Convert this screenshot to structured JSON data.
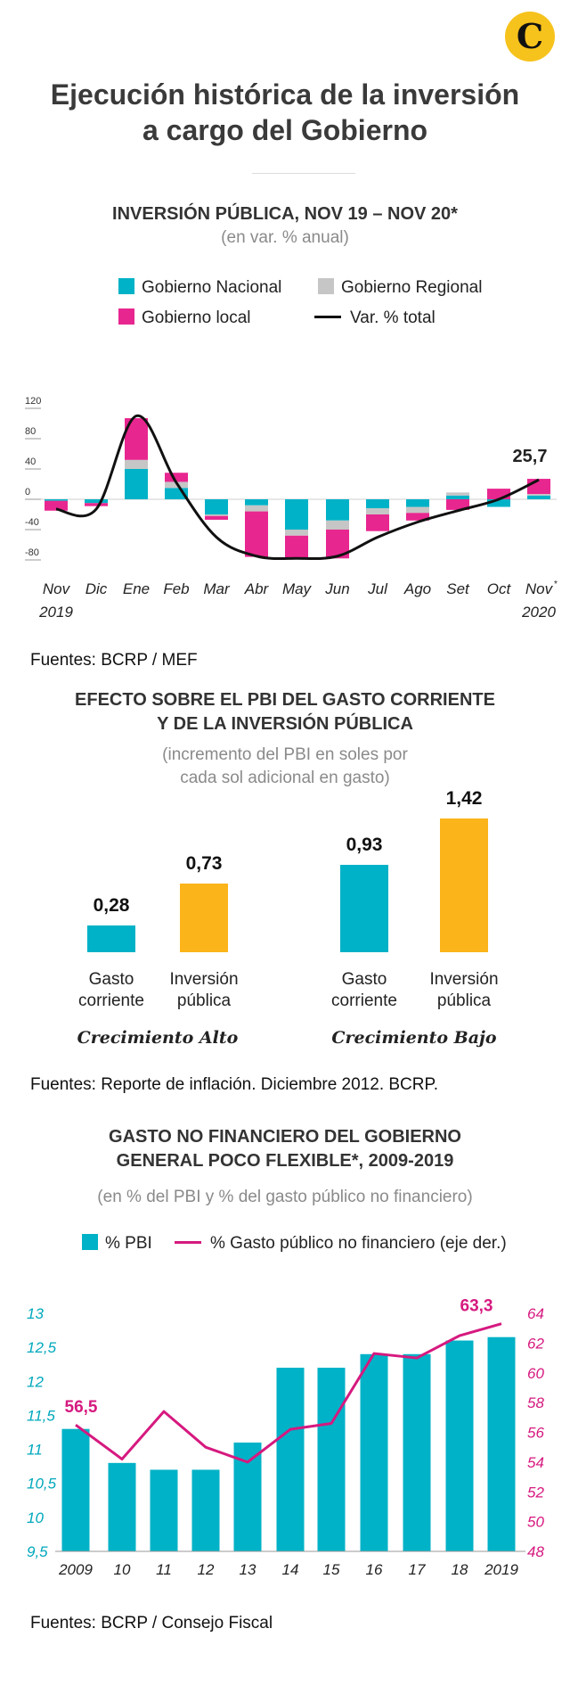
{
  "brand": {
    "logo_letter": "C"
  },
  "title_lines": [
    "Ejecución histórica de la inversión",
    "a cargo del Gobierno"
  ],
  "colors": {
    "nacional": "#00b2c7",
    "regional": "#c6c6c6",
    "local": "#e8268f",
    "total": "#111111",
    "gold": "#fbb41a",
    "pink_line": "#d6197f"
  },
  "section1": {
    "title": "INVERSIÓN PÚBLICA, NOV 19 – NOV 20*",
    "subtitle": "(en var. % anual)",
    "legend": {
      "nacional": "Gobierno Nacional",
      "regional": "Gobierno Regional",
      "local": "Gobierno local",
      "total": "Var. % total"
    },
    "source": "Fuentes: BCRP / MEF",
    "last_label": "25,7"
  },
  "section2": {
    "title_lines": [
      "EFECTO SOBRE EL PBI DEL GASTO CORRIENTE",
      "Y DE LA INVERSIÓN PÚBLICA"
    ],
    "subtitle_lines": [
      "(incremento del PBI en soles por",
      "cada sol adicional en gasto)"
    ],
    "labels": {
      "gasto": [
        "Gasto",
        "corriente"
      ],
      "inversion": [
        "Inversión",
        "pública"
      ]
    },
    "groups": [
      "Crecimiento Alto",
      "Crecimiento Bajo"
    ],
    "value_labels": [
      "0,28",
      "0,73",
      "0,93",
      "1,42"
    ],
    "source": "Fuentes: Reporte de inflación. Diciembre 2012. BCRP."
  },
  "section3": {
    "title_lines": [
      "GASTO NO FINANCIERO DEL GOBIERNO",
      "GENERAL POCO FLEXIBLE*, 2009-2019"
    ],
    "subtitle": "(en % del PBI y % del gasto público no financiero)",
    "legend": {
      "bars": "% PBI",
      "line": "% Gasto público no financiero (eje der.)"
    },
    "first_label": "56,5",
    "last_label": "63,3",
    "source": "Fuentes: BCRP / Consejo Fiscal"
  },
  "chart_data": [
    {
      "type": "bar",
      "stacked": true,
      "title": "INVERSIÓN PÚBLICA, NOV 19 – NOV 20*",
      "subtitle": "(en var. % anual)",
      "categories": [
        "Nov",
        "Dic",
        "Ene",
        "Feb",
        "Mar",
        "Abr",
        "May",
        "Jun",
        "Jul",
        "Ago",
        "Set",
        "Oct",
        "Nov*"
      ],
      "category_sublabels": [
        "2019",
        "",
        "",
        "",
        "",
        "",
        "",
        "",
        "",
        "",
        "",
        "",
        "2020"
      ],
      "series": [
        {
          "name": "Gobierno Nacional",
          "values": [
            -2,
            -5,
            40,
            15,
            -20,
            -8,
            -40,
            -28,
            -12,
            -10,
            5,
            -10,
            5
          ]
        },
        {
          "name": "Gobierno Regional",
          "values": [
            0,
            0,
            12,
            8,
            -2,
            -8,
            -8,
            -12,
            -8,
            -8,
            4,
            0,
            2
          ]
        },
        {
          "name": "Gobierno local",
          "values": [
            -13,
            -4,
            55,
            12,
            -5,
            -60,
            -30,
            -38,
            -22,
            -10,
            -14,
            14,
            20
          ]
        },
        {
          "name": "Var. % total",
          "type": "line",
          "values": [
            -13,
            -13,
            110,
            22,
            -50,
            -75,
            -78,
            -75,
            -50,
            -30,
            -15,
            0,
            25.7
          ]
        }
      ],
      "yticks": [
        120,
        80,
        40,
        0,
        -40,
        -80
      ],
      "ylim": [
        -90,
        120
      ],
      "annotation": "25,7",
      "legend_position": "top"
    },
    {
      "type": "bar",
      "title": "EFECTO SOBRE EL PBI DEL GASTO CORRIENTE Y DE LA INVERSIÓN PÚBLICA",
      "subtitle": "(incremento del PBI en soles por cada sol adicional en gasto)",
      "groups": [
        "Crecimiento Alto",
        "Crecimiento Bajo"
      ],
      "categories": [
        "Gasto corriente",
        "Inversión pública",
        "Gasto corriente",
        "Inversión pública"
      ],
      "values": [
        0.28,
        0.73,
        0.93,
        1.42
      ],
      "value_labels": [
        "0,28",
        "0,73",
        "0,93",
        "1,42"
      ],
      "ylim": [
        0,
        1.42
      ]
    },
    {
      "type": "bar",
      "title": "GASTO NO FINANCIERO DEL GOBIERNO GENERAL POCO FLEXIBLE*, 2009-2019",
      "subtitle": "(en % del PBI y % del gasto público no financiero)",
      "categories": [
        "2009",
        "10",
        "11",
        "12",
        "13",
        "14",
        "15",
        "16",
        "17",
        "18",
        "2019"
      ],
      "series": [
        {
          "name": "% PBI",
          "axis": "left",
          "values": [
            11.3,
            10.8,
            10.7,
            10.7,
            11.1,
            12.2,
            12.2,
            12.4,
            12.4,
            12.6,
            12.65
          ]
        },
        {
          "name": "% Gasto público no financiero (eje der.)",
          "axis": "right",
          "type": "line",
          "values": [
            56.5,
            54.2,
            57.4,
            55.0,
            54.0,
            56.2,
            56.6,
            61.3,
            61.0,
            62.5,
            63.3
          ]
        }
      ],
      "yticks_left": [
        "13",
        "12,5",
        "12",
        "11,5",
        "11",
        "10,5",
        "10",
        "9,5"
      ],
      "ylim_left": [
        9.5,
        13
      ],
      "yticks_right": [
        "64",
        "62",
        "60",
        "58",
        "56",
        "54",
        "52",
        "50",
        "48"
      ],
      "ylim_right": [
        48,
        64
      ],
      "annotations": [
        "56,5",
        "63,3"
      ],
      "legend_position": "top"
    }
  ]
}
